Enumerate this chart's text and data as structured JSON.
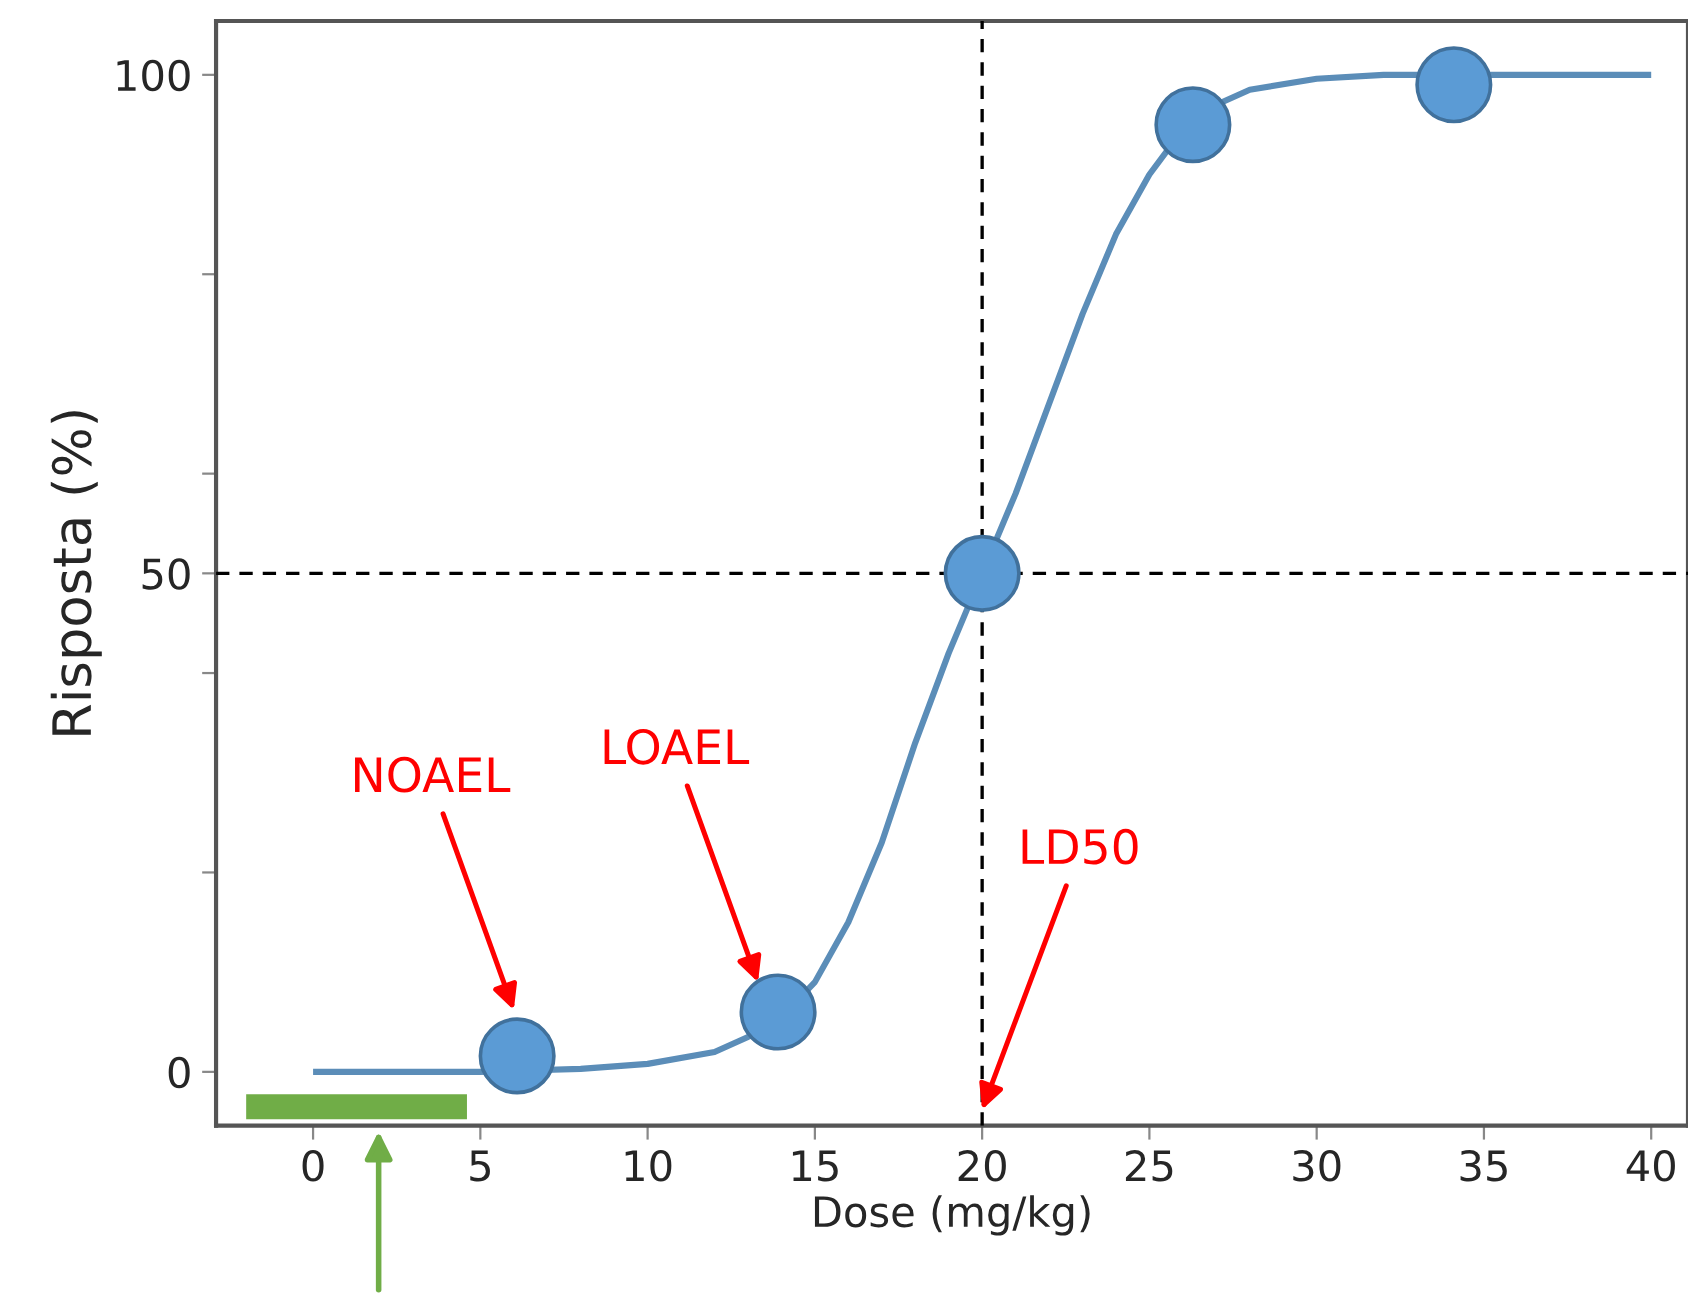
{
  "chart_data": {
    "type": "line",
    "xlabel": "Dose (mg/kg)",
    "ylabel": "Risposta (%)",
    "xlim": [
      -2.9,
      41.1
    ],
    "ylim": [
      -5.4,
      105.4
    ],
    "xticks": [
      0,
      5,
      10,
      15,
      20,
      25,
      30,
      35,
      40
    ],
    "yticks": [
      0,
      {
        "value": 20,
        "label": null
      },
      {
        "value": 40,
        "label": null
      },
      50,
      {
        "value": 60,
        "label": null
      },
      {
        "value": 80,
        "label": null
      },
      100
    ],
    "grid": false,
    "legend": false,
    "series": [
      {
        "color": "#5b8db8",
        "marker": "none",
        "line_style": "solid",
        "x": [
          0,
          5,
          8,
          10,
          12,
          13,
          14,
          15,
          16,
          17,
          18,
          19,
          20,
          21,
          22,
          23,
          24,
          25,
          26,
          27,
          28,
          30,
          32,
          35,
          40
        ],
        "values": [
          0,
          0,
          0.3,
          0.8,
          2,
          3.5,
          5.5,
          9,
          15,
          23,
          33,
          42,
          50,
          58,
          67,
          76,
          84,
          90,
          94.5,
          97,
          98.5,
          99.6,
          100,
          100,
          100
        ]
      },
      {
        "type": "scatter",
        "color": "#5b9bd5",
        "marker": "circle",
        "x": [
          6.1,
          13.9,
          20,
          26.3,
          34.1
        ],
        "values": [
          1.6,
          6,
          50,
          95,
          99
        ]
      },
      {
        "color": "#70ad47",
        "marker": "none",
        "line_style": "solid",
        "x": [
          -2,
          4.6
        ],
        "values": [
          -3.5,
          -3.5
        ]
      }
    ],
    "ref_lines": [
      {
        "axis": "x",
        "value": 20,
        "color": "#000000",
        "line_style": "dashed"
      },
      {
        "axis": "y",
        "value": 50,
        "color": "#000000",
        "line_style": "dashed"
      }
    ],
    "annotations": [
      {
        "text": "NOAEL",
        "x": 6,
        "y": 6.2
      },
      {
        "text": "LOAEL",
        "x": 13.3,
        "y": 9
      },
      {
        "text": "LD50",
        "x": 20,
        "y": -3.8
      }
    ]
  }
}
